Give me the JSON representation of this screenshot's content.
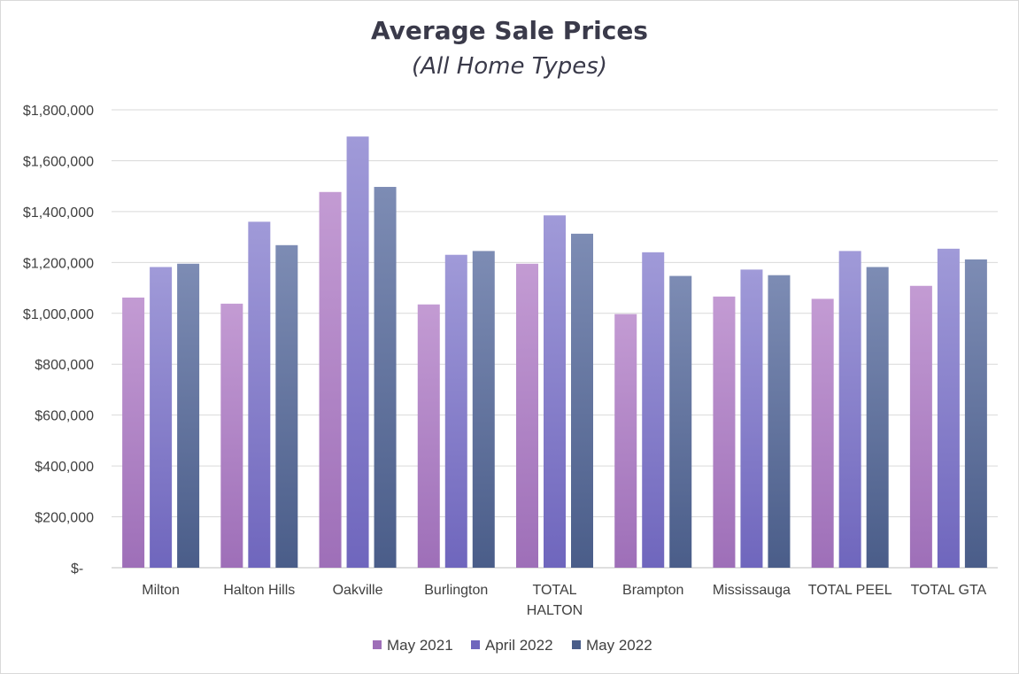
{
  "chart_data": {
    "type": "bar",
    "title": "Average Sale Prices",
    "subtitle": "(All Home Types)",
    "categories": [
      [
        "Milton"
      ],
      [
        "Halton Hills"
      ],
      [
        "Oakville"
      ],
      [
        "Burlington"
      ],
      [
        "TOTAL",
        "HALTON"
      ],
      [
        "Brampton"
      ],
      [
        "Mississauga"
      ],
      [
        "TOTAL PEEL"
      ],
      [
        "TOTAL GTA"
      ]
    ],
    "series": [
      {
        "name": "May 2021",
        "values": [
          1062000,
          1038000,
          1477000,
          1035000,
          1195000,
          997000,
          1066000,
          1057000,
          1108000
        ]
      },
      {
        "name": "April 2022",
        "values": [
          1182000,
          1360000,
          1695000,
          1230000,
          1385000,
          1240000,
          1172000,
          1245000,
          1254000
        ]
      },
      {
        "name": "May 2022",
        "values": [
          1195000,
          1268000,
          1497000,
          1245000,
          1313000,
          1147000,
          1150000,
          1182000,
          1212000
        ]
      }
    ],
    "ylim": [
      0,
      1800000
    ],
    "yticks": [
      {
        "value": 0,
        "label": "$-"
      },
      {
        "value": 200000,
        "label": "$200,000"
      },
      {
        "value": 400000,
        "label": "$400,000"
      },
      {
        "value": 600000,
        "label": "$600,000"
      },
      {
        "value": 800000,
        "label": "$800,000"
      },
      {
        "value": 1000000,
        "label": "$1,000,000"
      },
      {
        "value": 1200000,
        "label": "$1,200,000"
      },
      {
        "value": 1400000,
        "label": "$1,400,000"
      },
      {
        "value": 1600000,
        "label": "$1,600,000"
      },
      {
        "value": 1800000,
        "label": "$1,800,000"
      }
    ],
    "grid": true,
    "legend_position": "bottom",
    "colors": {
      "May 2021": [
        "#c39bd3",
        "#9e6fb8"
      ],
      "April 2022": [
        "#a09ad8",
        "#6f66bd"
      ],
      "May 2022": [
        "#7d8cb4",
        "#4a5d89"
      ]
    }
  }
}
